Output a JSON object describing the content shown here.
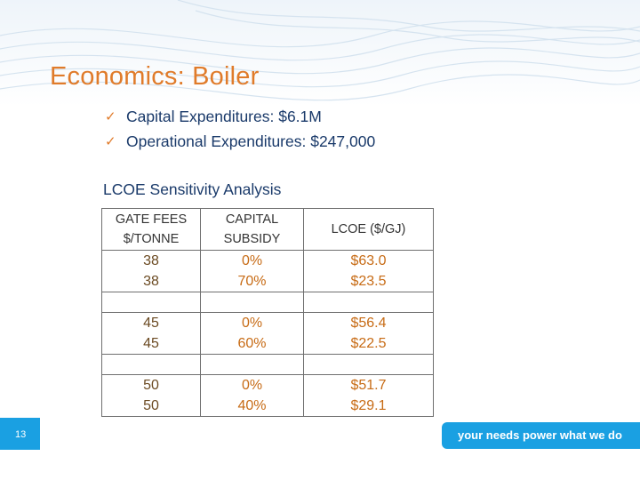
{
  "slide": {
    "title": "Economics: Boiler",
    "bullets": [
      "Capital Expenditures: $6.1M",
      "Operational Expenditures: $247,000"
    ],
    "subtitle": "LCOE Sensitivity Analysis",
    "page_number": "13",
    "tagline": "your needs power what we do",
    "colors": {
      "title": "#e07b2a",
      "body_text": "#1a3a6a",
      "accent_tab": "#1aa0e2"
    }
  },
  "table": {
    "headers": {
      "gate_fees": [
        "GATE FEES",
        "$/TONNE"
      ],
      "capital_subsidy": [
        "CAPITAL",
        "SUBSIDY"
      ],
      "lcoe": "LCOE ($/GJ)"
    },
    "groups": [
      {
        "gate_fees": [
          "38",
          "38"
        ],
        "subsidy": [
          "0%",
          "70%"
        ],
        "lcoe": [
          "$63.0",
          "$23.5"
        ]
      },
      {
        "gate_fees": [
          "45",
          "45"
        ],
        "subsidy": [
          "0%",
          "60%"
        ],
        "lcoe": [
          "$56.4",
          "$22.5"
        ]
      },
      {
        "gate_fees": [
          "50",
          "50"
        ],
        "subsidy": [
          "0%",
          "40%"
        ],
        "lcoe": [
          "$51.7",
          "$29.1"
        ]
      }
    ]
  }
}
